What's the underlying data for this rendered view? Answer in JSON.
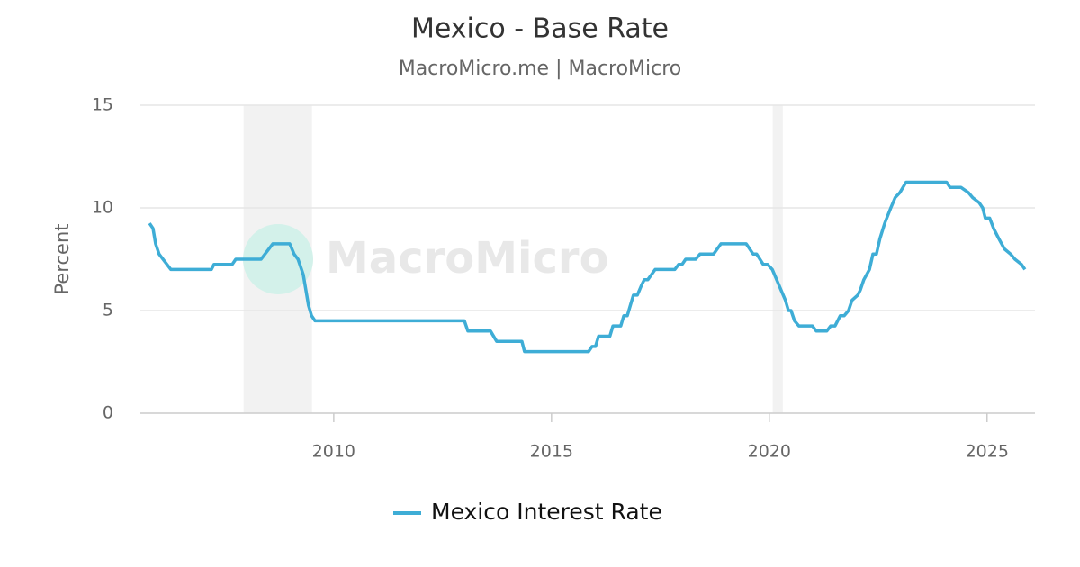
{
  "chart_data": {
    "type": "line",
    "title": "Mexico - Base Rate",
    "subtitle": "MacroMicro.me | MacroMicro",
    "watermark": "MacroMicro",
    "y_label": "Percent",
    "x": [
      2005.77,
      2005.85,
      2005.91,
      2005.99,
      2006.26,
      2007.19,
      2007.25,
      2007.67,
      2007.75,
      2008.33,
      2008.6,
      2008.99,
      2009.09,
      2009.18,
      2009.3,
      2009.42,
      2009.49,
      2009.57,
      2013.0,
      2013.08,
      2013.6,
      2013.74,
      2014.32,
      2014.38,
      2015.85,
      2015.93,
      2016.01,
      2016.08,
      2016.34,
      2016.41,
      2016.59,
      2016.66,
      2016.74,
      2016.88,
      2016.97,
      2017.07,
      2017.13,
      2017.21,
      2017.38,
      2017.83,
      2017.92,
      2018.0,
      2018.08,
      2018.31,
      2018.41,
      2018.72,
      2018.89,
      2019.47,
      2019.63,
      2019.71,
      2019.86,
      2019.96,
      2020.07,
      2020.17,
      2020.27,
      2020.37,
      2020.44,
      2020.5,
      2020.58,
      2020.68,
      2020.99,
      2021.08,
      2021.32,
      2021.41,
      2021.51,
      2021.63,
      2021.72,
      2021.82,
      2021.9,
      2022.03,
      2022.09,
      2022.17,
      2022.3,
      2022.38,
      2022.46,
      2022.54,
      2022.65,
      2022.79,
      2022.89,
      2023.0,
      2023.14,
      2024.07,
      2024.15,
      2024.4,
      2024.57,
      2024.67,
      2024.82,
      2024.9,
      2024.96,
      2025.06,
      2025.15,
      2025.27,
      2025.4,
      2025.54,
      2025.64,
      2025.79,
      2025.87
    ],
    "series": [
      {
        "name": "Mexico Interest Rate",
        "color": "#3eadd6",
        "values": [
          9.25,
          9.0,
          8.25,
          7.75,
          7.0,
          7.0,
          7.25,
          7.25,
          7.5,
          7.5,
          8.25,
          8.25,
          7.75,
          7.5,
          6.75,
          5.25,
          4.75,
          4.5,
          4.5,
          4.0,
          4.0,
          3.5,
          3.5,
          3.0,
          3.0,
          3.25,
          3.25,
          3.75,
          3.75,
          4.25,
          4.25,
          4.75,
          4.75,
          5.75,
          5.75,
          6.25,
          6.5,
          6.5,
          7.0,
          7.0,
          7.25,
          7.25,
          7.5,
          7.5,
          7.75,
          7.75,
          8.25,
          8.25,
          7.75,
          7.75,
          7.25,
          7.25,
          7.0,
          6.5,
          6.0,
          5.5,
          5.0,
          5.0,
          4.5,
          4.25,
          4.25,
          4.0,
          4.0,
          4.25,
          4.25,
          4.75,
          4.75,
          5.0,
          5.5,
          5.75,
          6.0,
          6.5,
          7.0,
          7.75,
          7.75,
          8.5,
          9.25,
          10.0,
          10.5,
          10.75,
          11.25,
          11.25,
          11.0,
          11.0,
          10.75,
          10.5,
          10.25,
          10.0,
          9.5,
          9.5,
          9.0,
          8.5,
          8.0,
          7.75,
          7.5,
          7.25,
          7.0
        ]
      }
    ],
    "shaded_periods": [
      [
        2007.93,
        2009.5
      ],
      [
        2020.08,
        2020.31
      ]
    ],
    "shade_color": "#f2f2f2",
    "xlim": [
      2005.56,
      2026.1
    ],
    "xticks": [
      2010,
      2015,
      2020,
      2025
    ],
    "ylim": [
      0,
      15
    ],
    "yticks": [
      0,
      5,
      10,
      15
    ],
    "grid": true
  }
}
